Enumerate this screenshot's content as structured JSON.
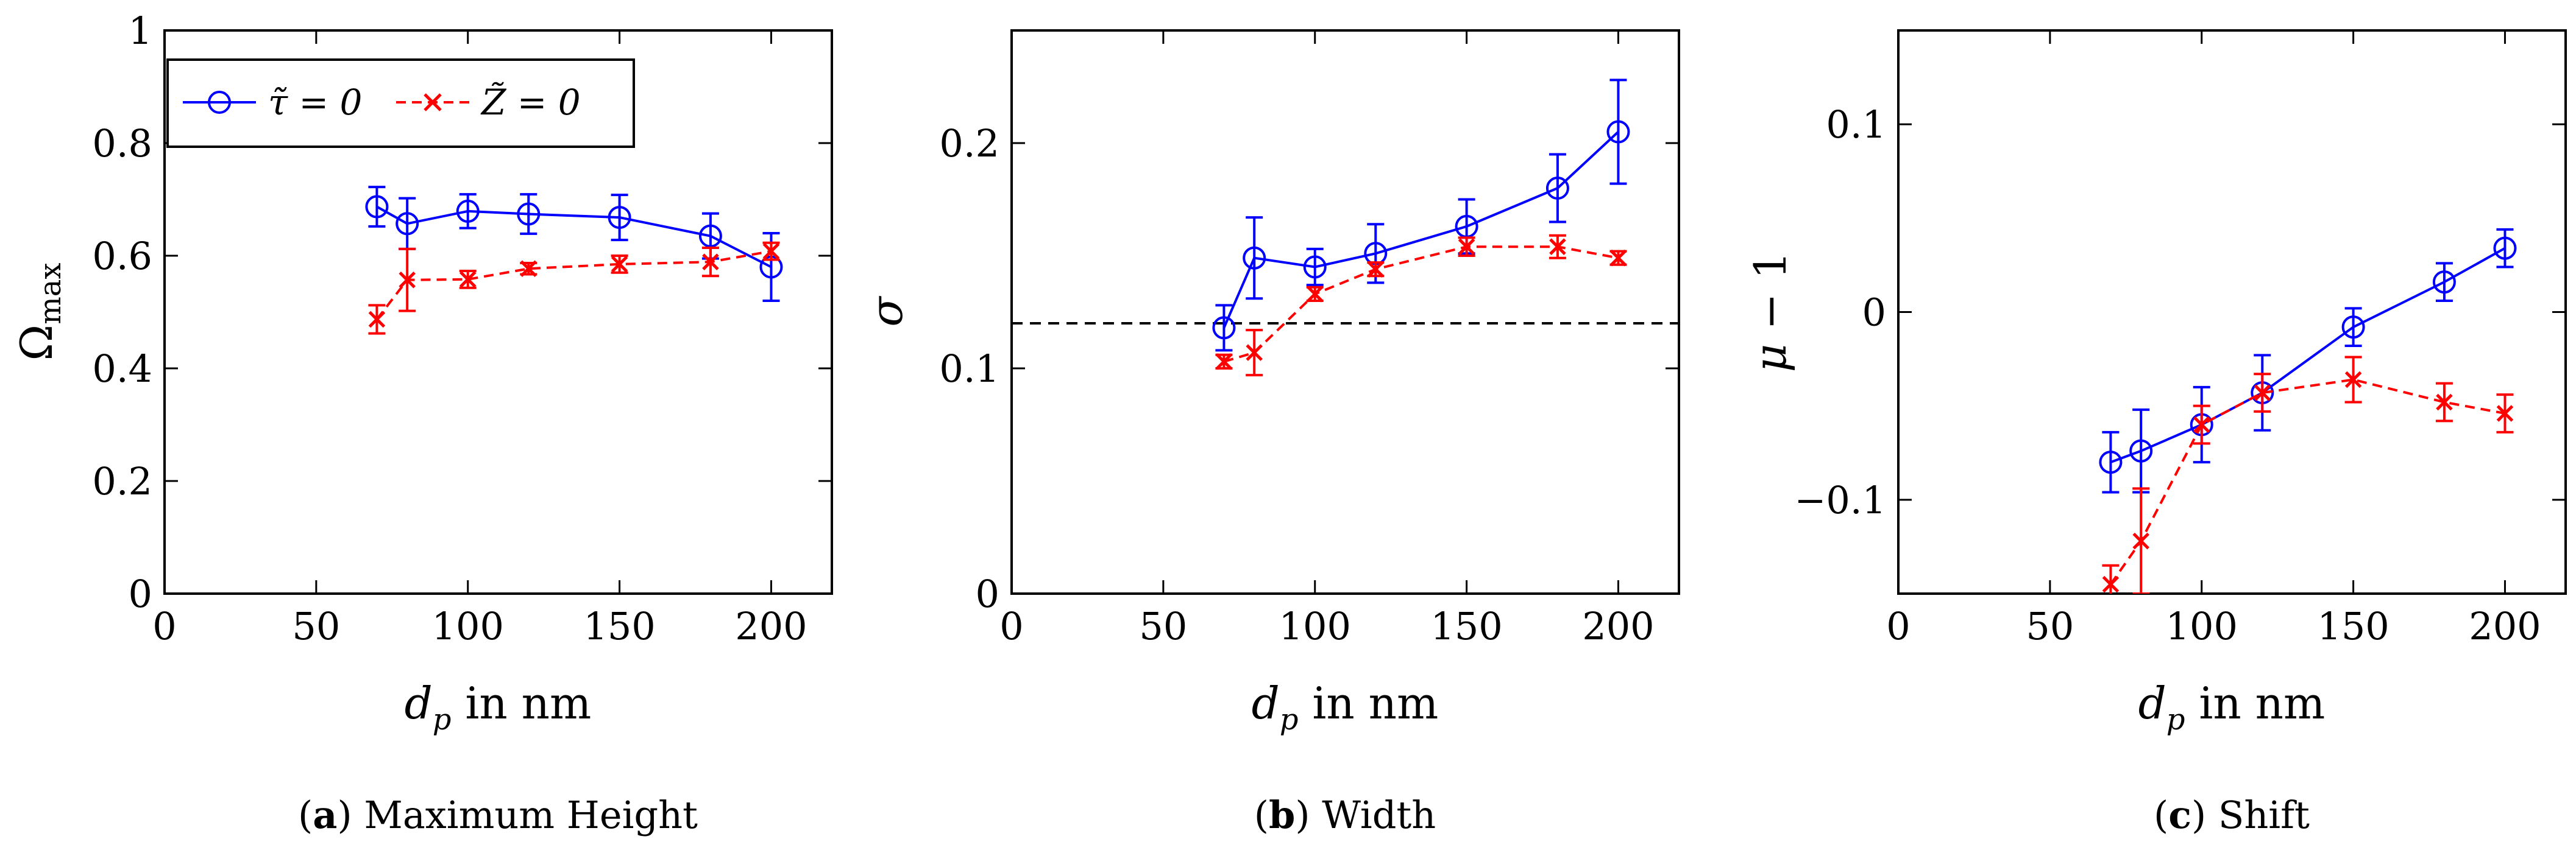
{
  "chart_data": [
    {
      "type": "line",
      "title": "",
      "xlabel": "d_p in nm",
      "ylabel": "Ω_max",
      "xlim": [
        0,
        220
      ],
      "ylim": [
        0,
        1
      ],
      "xticks": [
        0,
        50,
        100,
        150,
        200
      ],
      "yticks": [
        0,
        0.2,
        0.4,
        0.6,
        0.8,
        1
      ],
      "ytick_labels": [
        "0",
        "0.2",
        "0.4",
        "0.6",
        "0.8",
        "1"
      ],
      "caption_letter": "a",
      "caption_text": "Maximum Height",
      "legend": {
        "position": "top-left",
        "entries": [
          "τ̃ = 0",
          "Z̃ = 0"
        ]
      },
      "series": [
        {
          "name": "τ̃ = 0",
          "color": "#0000ff",
          "marker": "circle",
          "line": "solid",
          "x": [
            70,
            80,
            100,
            120,
            150,
            180,
            200
          ],
          "y": [
            0.687,
            0.657,
            0.679,
            0.674,
            0.668,
            0.635,
            0.58
          ],
          "err": [
            0.035,
            0.045,
            0.03,
            0.035,
            0.04,
            0.04,
            0.06
          ]
        },
        {
          "name": "Z̃ = 0",
          "color": "#ff0000",
          "marker": "x",
          "line": "dashed",
          "x": [
            70,
            80,
            100,
            120,
            150,
            180,
            200
          ],
          "y": [
            0.487,
            0.557,
            0.558,
            0.577,
            0.585,
            0.589,
            0.608
          ],
          "err": [
            0.025,
            0.055,
            0.015,
            0.01,
            0.015,
            0.025,
            0.015
          ]
        }
      ]
    },
    {
      "type": "line",
      "title": "",
      "xlabel": "d_p in nm",
      "ylabel": "σ",
      "xlim": [
        0,
        220
      ],
      "ylim": [
        0,
        0.25
      ],
      "xticks": [
        0,
        50,
        100,
        150,
        200
      ],
      "yticks": [
        0,
        0.1,
        0.2
      ],
      "ytick_labels": [
        "0",
        "0.1",
        "0.2"
      ],
      "reference_line": 0.12,
      "caption_letter": "b",
      "caption_text": "Width",
      "series": [
        {
          "name": "τ̃ = 0",
          "color": "#0000ff",
          "marker": "circle",
          "line": "solid",
          "x": [
            70,
            80,
            100,
            120,
            150,
            180,
            200
          ],
          "y": [
            0.118,
            0.149,
            0.145,
            0.151,
            0.163,
            0.18,
            0.205
          ],
          "err": [
            0.01,
            0.018,
            0.008,
            0.013,
            0.012,
            0.015,
            0.023
          ]
        },
        {
          "name": "Z̃ = 0",
          "color": "#ff0000",
          "marker": "x",
          "line": "dashed",
          "x": [
            70,
            80,
            100,
            120,
            150,
            180,
            200
          ],
          "y": [
            0.103,
            0.107,
            0.133,
            0.144,
            0.154,
            0.154,
            0.149
          ],
          "err": [
            0.003,
            0.01,
            0.003,
            0.003,
            0.004,
            0.005,
            0.003
          ]
        }
      ]
    },
    {
      "type": "line",
      "title": "",
      "xlabel": "d_p in nm",
      "ylabel": "μ − 1",
      "xlim": [
        0,
        220
      ],
      "ylim": [
        -0.15,
        0.15
      ],
      "xticks": [
        0,
        50,
        100,
        150,
        200
      ],
      "yticks": [
        -0.1,
        0,
        0.1
      ],
      "ytick_labels": [
        "−0.1",
        "0",
        "0.1"
      ],
      "caption_letter": "c",
      "caption_text": "Shift",
      "series": [
        {
          "name": "τ̃ = 0",
          "color": "#0000ff",
          "marker": "circle",
          "line": "solid",
          "x": [
            70,
            80,
            100,
            120,
            150,
            180,
            200
          ],
          "y": [
            -0.08,
            -0.074,
            -0.06,
            -0.043,
            -0.008,
            0.016,
            0.034
          ],
          "err": [
            0.016,
            0.022,
            0.02,
            0.02,
            0.01,
            0.01,
            0.01
          ]
        },
        {
          "name": "Z̃ = 0",
          "color": "#ff0000",
          "marker": "x",
          "line": "dashed",
          "x": [
            70,
            80,
            100,
            120,
            150,
            180,
            200
          ],
          "y": [
            -0.145,
            -0.122,
            -0.06,
            -0.043,
            -0.036,
            -0.048,
            -0.054
          ],
          "err": [
            0.01,
            0.028,
            0.01,
            0.01,
            0.012,
            0.01,
            0.01
          ]
        }
      ]
    }
  ]
}
